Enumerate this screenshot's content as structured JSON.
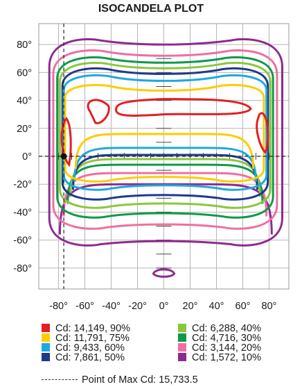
{
  "chart_data": {
    "type": "contour",
    "title": "ISOCANDELA PLOT",
    "xlabel": "",
    "ylabel": "",
    "xlim": [
      -95,
      95
    ],
    "ylim": [
      -95,
      95
    ],
    "x_ticks": [
      "-80°",
      "-60°",
      "-40°",
      "-20°",
      "0°",
      "20°",
      "40°",
      "60°",
      "80°"
    ],
    "x_tick_values": [
      -80,
      -60,
      -40,
      -20,
      0,
      20,
      40,
      60,
      80
    ],
    "y_ticks": [
      "80°",
      "60°",
      "40°",
      "20°",
      "0°",
      "-20°",
      "-40°",
      "-60°",
      "-80°"
    ],
    "y_tick_values": [
      80,
      60,
      40,
      20,
      0,
      -20,
      -40,
      -60,
      -80
    ],
    "grid": true,
    "max_point": {
      "x": -76,
      "y": 0
    },
    "contours": [
      {
        "label": "Cd: 14,149, 90%",
        "color": "#e31e24",
        "level_cd": 14149,
        "level_pct": 90
      },
      {
        "label": "Cd: 11,791, 75%",
        "color": "#ffcc00",
        "level_cd": 11791,
        "level_pct": 75
      },
      {
        "label": "Cd: 9,433, 60%",
        "color": "#1ea8e0",
        "level_cd": 9433,
        "level_pct": 60
      },
      {
        "label": "Cd: 7,861, 50%",
        "color": "#1f3a8c",
        "level_cd": 7861,
        "level_pct": 50
      },
      {
        "label": "Cd: 6,288, 40%",
        "color": "#8cc63f",
        "level_cd": 6288,
        "level_pct": 40
      },
      {
        "label": "Cd: 4,716, 30%",
        "color": "#0e9a48",
        "level_cd": 4716,
        "level_pct": 30
      },
      {
        "label": "Cd: 3,144, 20%",
        "color": "#ef6fa1",
        "level_cd": 3144,
        "level_pct": 20
      },
      {
        "label": "Cd: 1,572, 10%",
        "color": "#8e2a8f",
        "level_cd": 1572,
        "level_pct": 10
      }
    ],
    "max_note": "Point of Max Cd: 15,733.5"
  }
}
